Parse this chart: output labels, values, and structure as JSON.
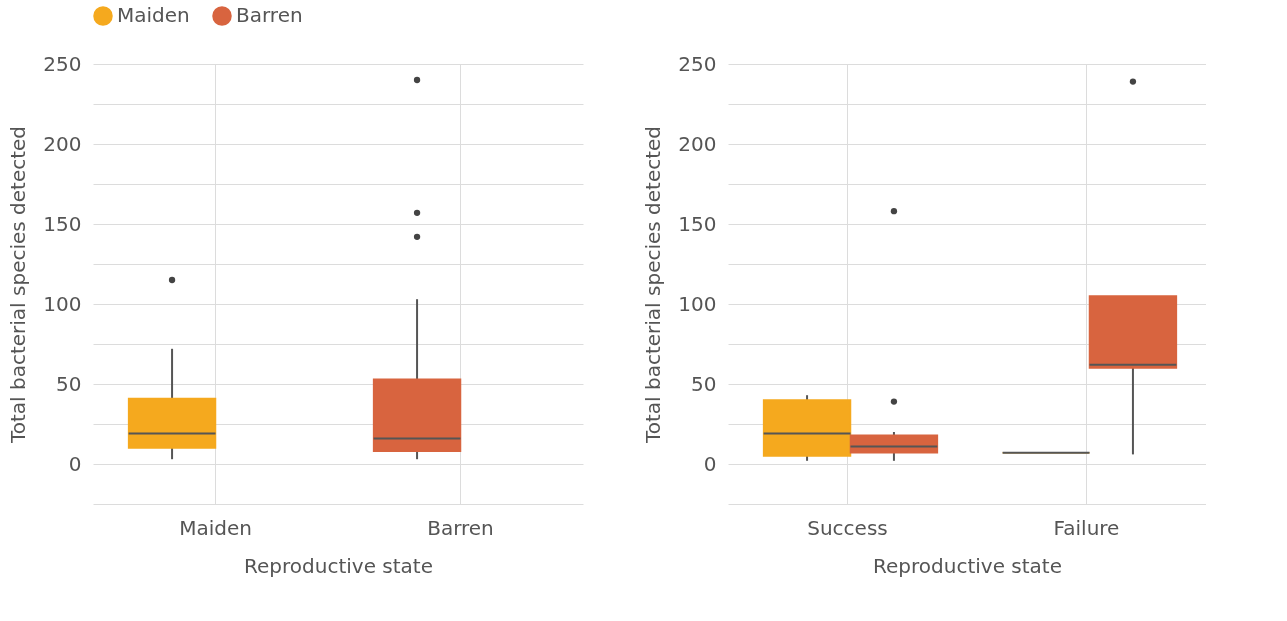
{
  "chart_data": [
    {
      "type": "box",
      "categories": [
        "Maiden",
        "Barren"
      ],
      "xlabel": "Reproductive state",
      "ylabel": "Total bacterial species detected",
      "ylim": [
        -25,
        250
      ],
      "yticks": [
        {
          "value": -25,
          "label": null
        },
        0,
        {
          "value": 25,
          "label": null
        },
        50,
        {
          "value": 75,
          "label": null
        },
        100,
        {
          "value": 125,
          "label": null
        },
        150,
        {
          "value": 175,
          "label": null
        },
        200,
        {
          "value": 225,
          "label": null
        },
        250
      ],
      "grid": true,
      "legend": "top left",
      "series": [
        {
          "name": "Maiden",
          "color": "#f5a91e",
          "boxes": [
            {
              "low": 3,
              "q1": 10,
              "median": 19,
              "q3": 41,
              "high": 72,
              "outliers": [
                115
              ]
            },
            null
          ]
        },
        {
          "name": "Barren",
          "color": "#d8643f",
          "boxes": [
            null,
            {
              "low": 3,
              "q1": 8,
              "median": 16,
              "q3": 53,
              "high": 103,
              "outliers": [
                142,
                157,
                240
              ]
            }
          ]
        }
      ]
    },
    {
      "type": "box",
      "categories": [
        "Success",
        "Failure"
      ],
      "xlabel": "Reproductive state",
      "ylabel": "Total bacterial species detected",
      "ylim": [
        -25,
        250
      ],
      "yticks": [
        {
          "value": -25,
          "label": null
        },
        0,
        {
          "value": 25,
          "label": null
        },
        50,
        {
          "value": 75,
          "label": null
        },
        100,
        {
          "value": 125,
          "label": null
        },
        150,
        {
          "value": 175,
          "label": null
        },
        200,
        {
          "value": 225,
          "label": null
        },
        250
      ],
      "grid": true,
      "legend": "top left",
      "series": [
        {
          "name": "Maiden",
          "color": "#f5a91e",
          "boxes": [
            {
              "low": 2,
              "q1": 5,
              "median": 19,
              "q3": 40,
              "high": 43
            },
            {
              "low": 7,
              "q1": 7,
              "median": 7,
              "q3": 7,
              "high": 7
            }
          ]
        },
        {
          "name": "Barren",
          "color": "#d8643f",
          "boxes": [
            {
              "low": 2,
              "q1": 7,
              "median": 11,
              "q3": 18,
              "high": 20,
              "outliers": [
                39,
                158
              ]
            },
            {
              "low": 6,
              "q1": 60,
              "median": 62,
              "q3": 105,
              "high": 105,
              "outliers": [
                239
              ]
            }
          ]
        }
      ]
    }
  ]
}
